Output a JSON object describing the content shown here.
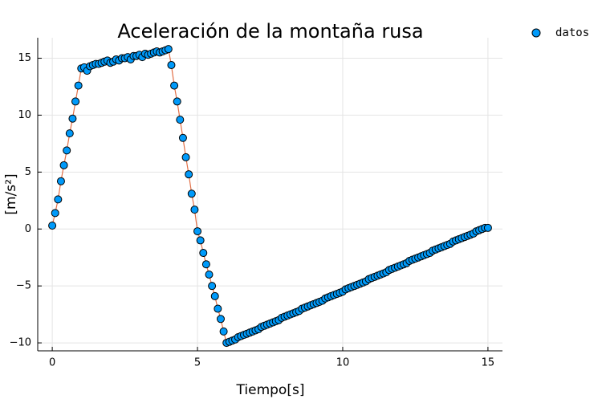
{
  "chart_data": {
    "type": "scatter",
    "title": "Aceleración de la montaña rusa",
    "xlabel": "Tiempo[s]",
    "ylabel": "[m/s²]",
    "x": [
      0,
      0.1,
      0.2,
      0.3,
      0.4,
      0.5,
      0.6,
      0.7,
      0.8,
      0.9,
      1.0,
      1.1,
      1.2,
      1.3,
      1.4,
      1.5,
      1.6,
      1.7,
      1.8,
      1.9,
      2.0,
      2.1,
      2.2,
      2.3,
      2.4,
      2.5,
      2.6,
      2.7,
      2.8,
      2.9,
      3.0,
      3.1,
      3.2,
      3.3,
      3.4,
      3.5,
      3.6,
      3.7,
      3.8,
      3.9,
      4.0,
      4.1,
      4.2,
      4.3,
      4.4,
      4.5,
      4.6,
      4.7,
      4.8,
      4.9,
      5.0,
      5.1,
      5.2,
      5.3,
      5.4,
      5.5,
      5.6,
      5.7,
      5.8,
      5.9,
      6.0,
      6.1,
      6.2,
      6.3,
      6.4,
      6.5,
      6.6,
      6.7,
      6.8,
      6.9,
      7.0,
      7.1,
      7.2,
      7.3,
      7.4,
      7.5,
      7.6,
      7.7,
      7.8,
      7.9,
      8.0,
      8.1,
      8.2,
      8.3,
      8.4,
      8.5,
      8.6,
      8.7,
      8.8,
      8.9,
      9.0,
      9.1,
      9.2,
      9.3,
      9.4,
      9.5,
      9.6,
      9.7,
      9.8,
      9.9,
      10.0,
      10.1,
      10.2,
      10.3,
      10.4,
      10.5,
      10.6,
      10.7,
      10.8,
      10.9,
      11.0,
      11.1,
      11.2,
      11.3,
      11.4,
      11.5,
      11.6,
      11.7,
      11.8,
      11.9,
      12.0,
      12.1,
      12.2,
      12.3,
      12.4,
      12.5,
      12.6,
      12.7,
      12.8,
      12.9,
      13.0,
      13.1,
      13.2,
      13.3,
      13.4,
      13.5,
      13.6,
      13.7,
      13.8,
      13.9,
      14.0,
      14.1,
      14.2,
      14.3,
      14.4,
      14.5,
      14.6,
      14.7,
      14.8,
      14.9,
      15.0
    ],
    "series": [
      {
        "name": "datos",
        "color": "#009AFA",
        "line_color": "#E26F46",
        "values": [
          0.3,
          1.4,
          2.6,
          4.2,
          5.6,
          6.9,
          8.4,
          9.7,
          11.2,
          12.6,
          14.1,
          14.2,
          13.9,
          14.3,
          14.4,
          14.5,
          14.5,
          14.6,
          14.7,
          14.8,
          14.6,
          14.7,
          14.9,
          14.8,
          15.0,
          15.0,
          15.1,
          14.9,
          15.2,
          15.2,
          15.3,
          15.1,
          15.4,
          15.3,
          15.4,
          15.5,
          15.6,
          15.5,
          15.6,
          15.7,
          15.8,
          14.4,
          12.6,
          11.2,
          9.6,
          8.0,
          6.3,
          4.8,
          3.1,
          1.7,
          -0.2,
          -1.0,
          -2.1,
          -3.1,
          -4.0,
          -5.0,
          -5.9,
          -7.0,
          -7.9,
          -9.0,
          -10.0,
          -9.9,
          -9.8,
          -9.7,
          -9.5,
          -9.4,
          -9.3,
          -9.2,
          -9.1,
          -9.0,
          -8.9,
          -8.8,
          -8.6,
          -8.5,
          -8.4,
          -8.3,
          -8.2,
          -8.1,
          -8.0,
          -7.8,
          -7.7,
          -7.6,
          -7.5,
          -7.4,
          -7.3,
          -7.2,
          -7.0,
          -6.9,
          -6.8,
          -6.7,
          -6.6,
          -6.5,
          -6.4,
          -6.3,
          -6.1,
          -6.0,
          -5.9,
          -5.8,
          -5.7,
          -5.6,
          -5.5,
          -5.3,
          -5.2,
          -5.1,
          -5.0,
          -4.9,
          -4.8,
          -4.7,
          -4.6,
          -4.4,
          -4.3,
          -4.2,
          -4.1,
          -4.0,
          -3.9,
          -3.8,
          -3.6,
          -3.5,
          -3.4,
          -3.3,
          -3.2,
          -3.1,
          -3.0,
          -2.8,
          -2.7,
          -2.6,
          -2.5,
          -2.4,
          -2.3,
          -2.2,
          -2.1,
          -1.9,
          -1.8,
          -1.7,
          -1.6,
          -1.5,
          -1.4,
          -1.3,
          -1.1,
          -1.0,
          -0.9,
          -0.8,
          -0.7,
          -0.6,
          -0.5,
          -0.4,
          -0.2,
          -0.1,
          0.0,
          0.1,
          0.1
        ]
      }
    ],
    "xlim": [
      -0.5,
      15.5
    ],
    "xticks": [
      0,
      5,
      10,
      15
    ],
    "ylim": [
      -10.7,
      16.8
    ],
    "yticks": [
      {
        "value": -10,
        "label": "−10"
      },
      {
        "value": -5,
        "label": "−5"
      },
      0,
      5,
      10,
      15
    ],
    "grid": true,
    "legend": "outside top right"
  }
}
